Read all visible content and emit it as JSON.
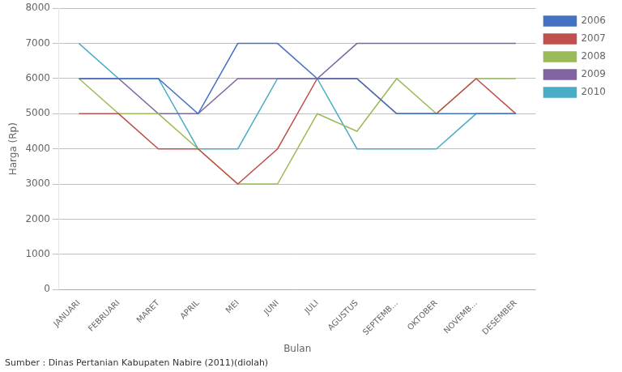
{
  "chart_data": {
    "type": "line",
    "categories": [
      "JANUARI",
      "FEBRUARI",
      "MARET",
      "APRIL",
      "MEI",
      "JUNI",
      "JULI",
      "AGUSTUS",
      "SEPTEMB...",
      "OKTOBER",
      "NOVEMB...",
      "DESEMBER"
    ],
    "series": [
      {
        "name": "2006",
        "color": "#4472C4",
        "values": [
          6000,
          6000,
          6000,
          5000,
          7000,
          7000,
          6000,
          6000,
          5000,
          5000,
          5000,
          5000
        ]
      },
      {
        "name": "2007",
        "color": "#C0504D",
        "values": [
          5000,
          5000,
          4000,
          4000,
          3000,
          4000,
          6000,
          6000,
          5000,
          5000,
          6000,
          5000
        ]
      },
      {
        "name": "2008",
        "color": "#9BBB59",
        "values": [
          6000,
          5000,
          5000,
          4000,
          3000,
          3000,
          5000,
          4500,
          6000,
          5000,
          6000,
          6000
        ]
      },
      {
        "name": "2009",
        "color": "#8064A2",
        "values": [
          6000,
          6000,
          5000,
          5000,
          6000,
          6000,
          6000,
          7000,
          7000,
          7000,
          7000,
          7000
        ]
      },
      {
        "name": "2010",
        "color": "#4BACC6",
        "values": [
          7000,
          6000,
          6000,
          4000,
          4000,
          6000,
          6000,
          4000,
          4000,
          4000,
          5000,
          5000
        ]
      }
    ],
    "ylabel": "Harga (Rp)",
    "xlabel": "Bulan",
    "source": "Sumber : Dinas Pertanian Kabupaten Nabire (2011)(diolah)",
    "ylim": [
      0,
      8000
    ],
    "yticks": [
      0,
      1000,
      2000,
      3000,
      4000,
      5000,
      6000,
      7000,
      8000
    ],
    "grid": true,
    "legend": "right"
  }
}
